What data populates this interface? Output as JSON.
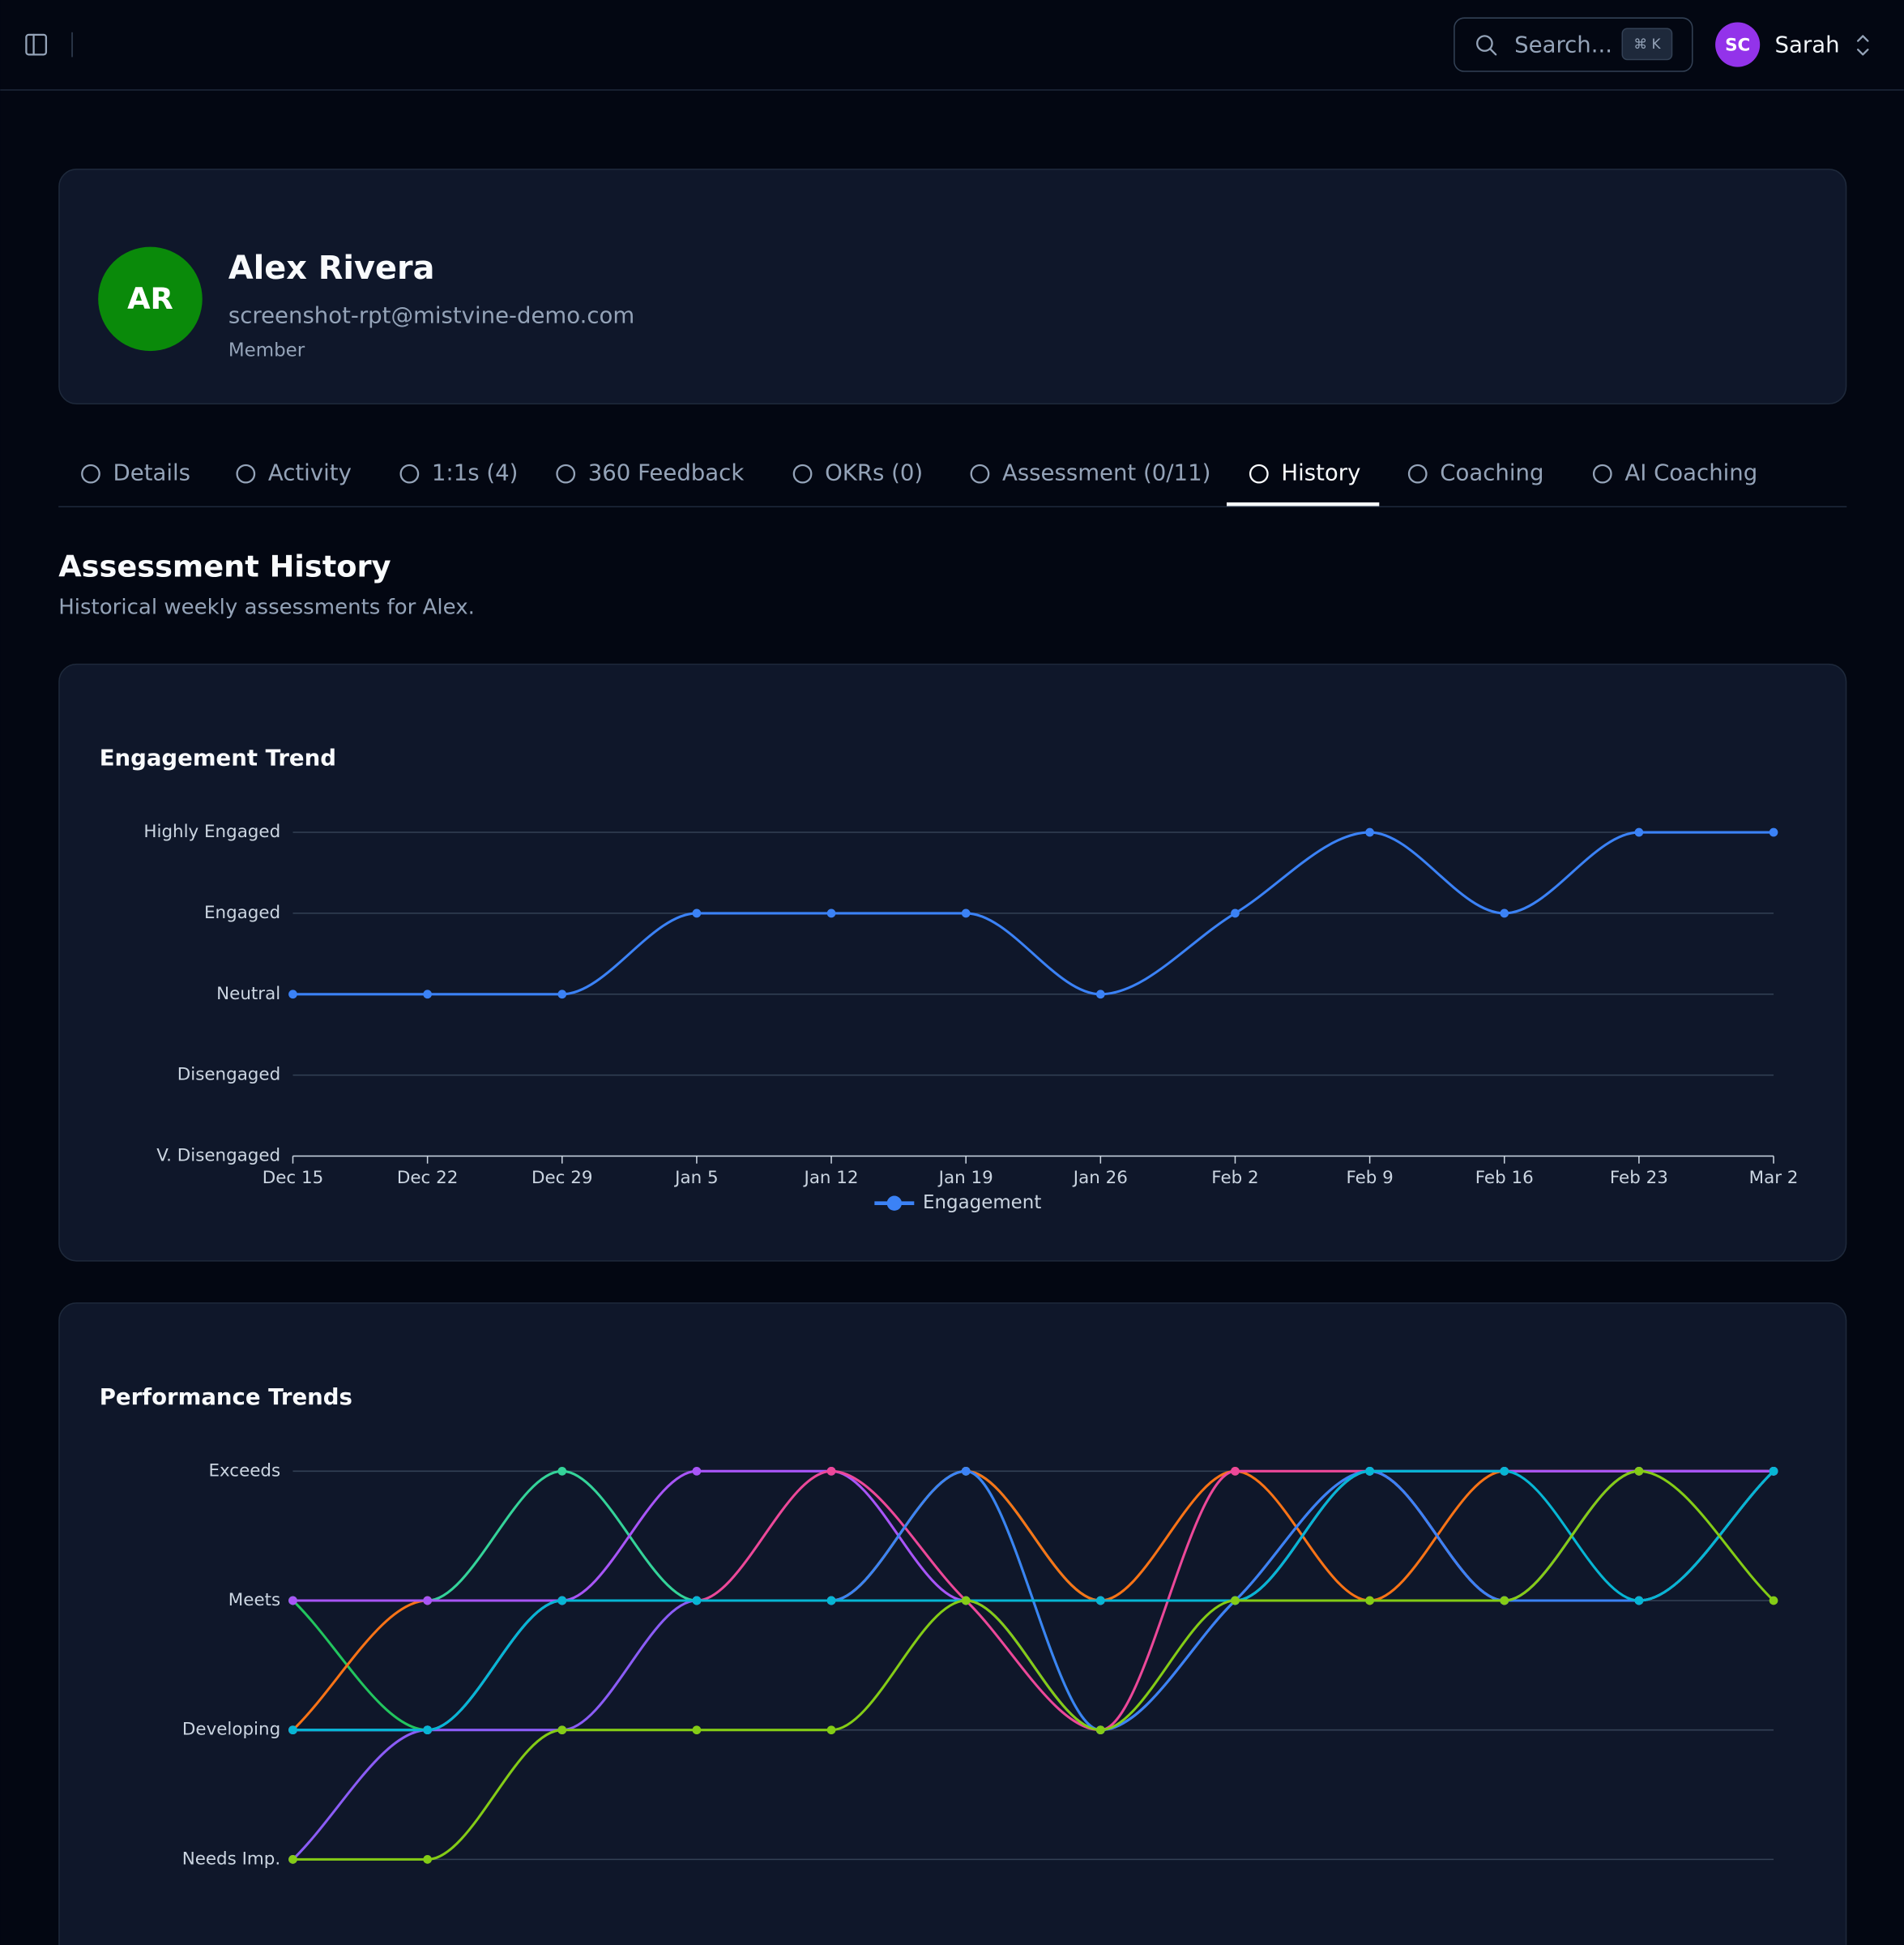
{
  "topbar": {
    "search": "Search...",
    "shortcut": "⌘ K",
    "user_initials": "SC",
    "user_name": "Sarah"
  },
  "profile": {
    "initials": "AR",
    "name": "Alex Rivera",
    "email": "screenshot-rpt@mistvine-demo.com",
    "role": "Member"
  },
  "tabs": [
    {
      "label": "Details"
    },
    {
      "label": "Activity"
    },
    {
      "label": "1:1s (4)"
    },
    {
      "label": "360 Feedback"
    },
    {
      "label": "OKRs (0)"
    },
    {
      "label": "Assessment (0/11)"
    },
    {
      "label": "History",
      "active": true
    },
    {
      "label": "Coaching"
    },
    {
      "label": "AI Coaching"
    }
  ],
  "section": {
    "title": "Assessment History",
    "subtitle": "Historical weekly assessments for Alex."
  },
  "chart_data": [
    {
      "type": "line",
      "title": "Engagement Trend",
      "categories": [
        "Dec 15",
        "Dec 22",
        "Dec 29",
        "Jan 5",
        "Jan 12",
        "Jan 19",
        "Jan 26",
        "Feb 2",
        "Feb 9",
        "Feb 16",
        "Feb 23",
        "Mar 2"
      ],
      "series": [
        {
          "name": "Engagement",
          "color": "#3b82f6",
          "values": [
            3,
            3,
            3,
            4,
            4,
            4,
            3,
            4,
            5,
            4,
            5,
            5
          ]
        }
      ],
      "ylim": [
        1,
        5
      ],
      "yticks": [
        {
          "value": 1,
          "label": "V. Disengaged"
        },
        {
          "value": 2,
          "label": "Disengaged"
        },
        {
          "value": 3,
          "label": "Neutral"
        },
        {
          "value": 4,
          "label": "Engaged"
        },
        {
          "value": 5,
          "label": "Highly Engaged"
        }
      ],
      "grid": true,
      "legend": "bottom"
    },
    {
      "type": "line",
      "title": "Performance Trends",
      "series": [
        {
          "color": "#34d399",
          "values": [
            3,
            3,
            4,
            3,
            3,
            4,
            3,
            3,
            4,
            3,
            3,
            4
          ]
        },
        {
          "color": "#22c55e",
          "values": [
            3,
            2,
            3,
            3,
            3,
            4,
            2,
            3,
            4,
            3,
            3,
            4
          ]
        },
        {
          "color": "#f97316",
          "values": [
            2,
            3,
            3,
            3,
            3,
            4,
            3,
            4,
            3,
            4,
            4,
            4
          ]
        },
        {
          "color": "#8b5cf6",
          "values": [
            1,
            2,
            2,
            3,
            3,
            3,
            2,
            3,
            4,
            3,
            4,
            4
          ]
        },
        {
          "color": "#a855f7",
          "values": [
            3,
            3,
            3,
            4,
            4,
            3,
            3,
            3,
            4,
            4,
            4,
            4
          ]
        },
        {
          "color": "#ec4899",
          "values": [
            2,
            2,
            3,
            3,
            4,
            3,
            2,
            4,
            4,
            3,
            3,
            4
          ]
        },
        {
          "color": "#3b82f6",
          "values": [
            2,
            2,
            3,
            3,
            3,
            4,
            2,
            3,
            4,
            3,
            3,
            4
          ]
        },
        {
          "color": "#06b6d4",
          "values": [
            2,
            2,
            3,
            3,
            3,
            3,
            3,
            3,
            4,
            4,
            3,
            4
          ]
        },
        {
          "color": "#84cc16",
          "values": [
            1,
            1,
            2,
            2,
            2,
            3,
            2,
            3,
            3,
            3,
            4,
            3
          ]
        }
      ],
      "ylim": [
        1,
        4
      ],
      "yticks": [
        {
          "value": 1,
          "label": "Needs Imp."
        },
        {
          "value": 2,
          "label": "Developing"
        },
        {
          "value": 3,
          "label": "Meets"
        },
        {
          "value": 4,
          "label": "Exceeds"
        }
      ],
      "grid": true
    }
  ]
}
